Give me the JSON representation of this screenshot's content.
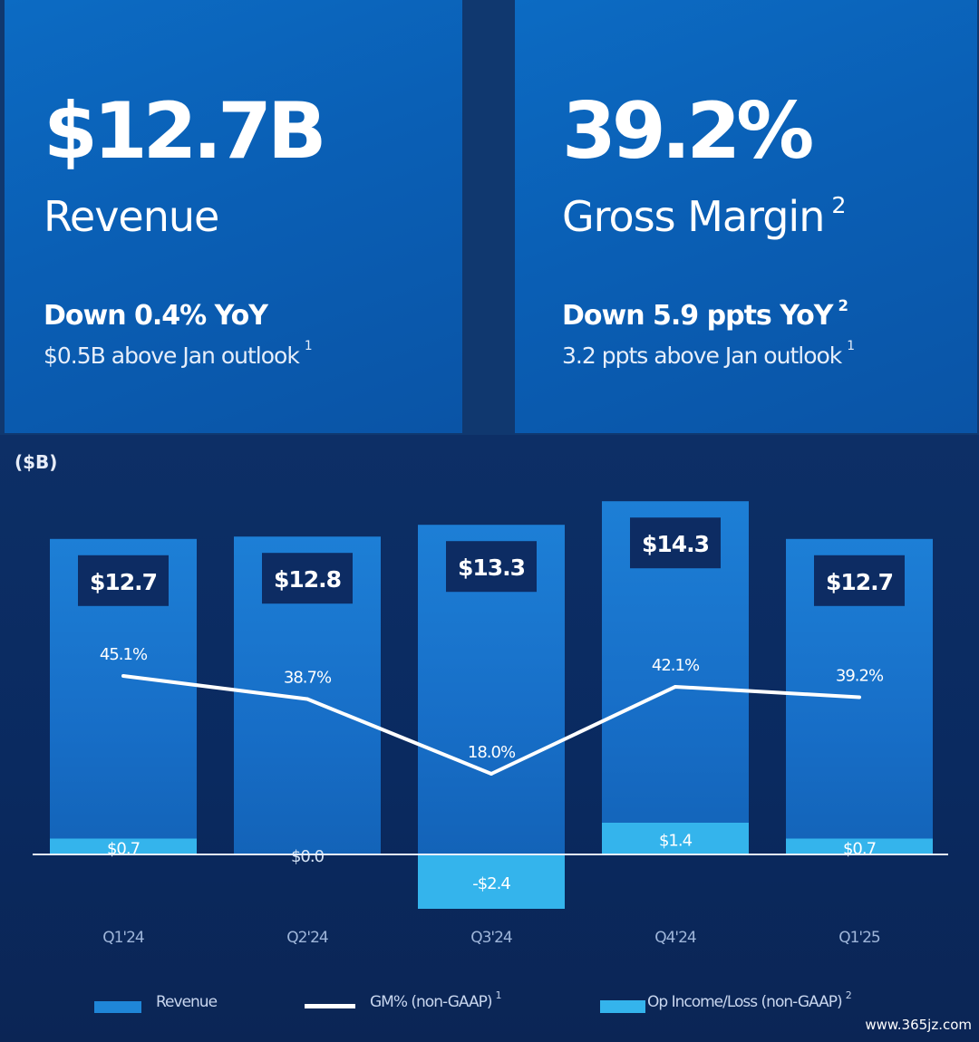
{
  "kpis": {
    "revenue": {
      "value": "$12.7B",
      "label": "Revenue",
      "change": "Down 0.4% YoY",
      "outlook": "$0.5B above Jan outlook",
      "outlook_footnote": "1"
    },
    "gross_margin": {
      "value": "39.2%",
      "label": "Gross Margin",
      "label_footnote": "2",
      "change": "Down 5.9 ppts YoY",
      "change_footnote": "2",
      "outlook": "3.2 ppts above Jan outlook",
      "outlook_footnote": "1"
    }
  },
  "chart_data": {
    "type": "bar",
    "unit_label": "($B)",
    "categories": [
      "Q1'24",
      "Q2'24",
      "Q3'24",
      "Q4'24",
      "Q1'25"
    ],
    "series": [
      {
        "name": "Revenue",
        "type": "bar",
        "values": [
          12.7,
          12.8,
          13.3,
          14.3,
          12.7
        ],
        "labels": [
          "$12.7",
          "$12.8",
          "$13.3",
          "$14.3",
          "$12.7"
        ]
      },
      {
        "name": "GM% (non-GAAP)",
        "name_footnote": "1",
        "type": "line",
        "values": [
          45.1,
          38.7,
          18.0,
          42.1,
          39.2
        ],
        "labels": [
          "45.1%",
          "38.7%",
          "18.0%",
          "42.1%",
          "39.2%"
        ]
      },
      {
        "name": "Op Income/Loss (non-GAAP)",
        "name_footnote": "2",
        "type": "bar",
        "values": [
          0.7,
          0.0,
          -2.4,
          1.4,
          0.7
        ],
        "labels": [
          "$0.7",
          "$0.0",
          "-$2.4",
          "$1.4",
          "$0.7"
        ]
      }
    ],
    "legend_position": "bottom",
    "grid": false
  },
  "watermark": "www.365jz.com",
  "colors": {
    "card": "#0a5fb5",
    "chart_bg": "#0c2b62",
    "revenue_bar": "#1f86d8",
    "op_income_bar": "#34b4ec",
    "line": "#ffffff",
    "label_box": "#0d2c63"
  }
}
